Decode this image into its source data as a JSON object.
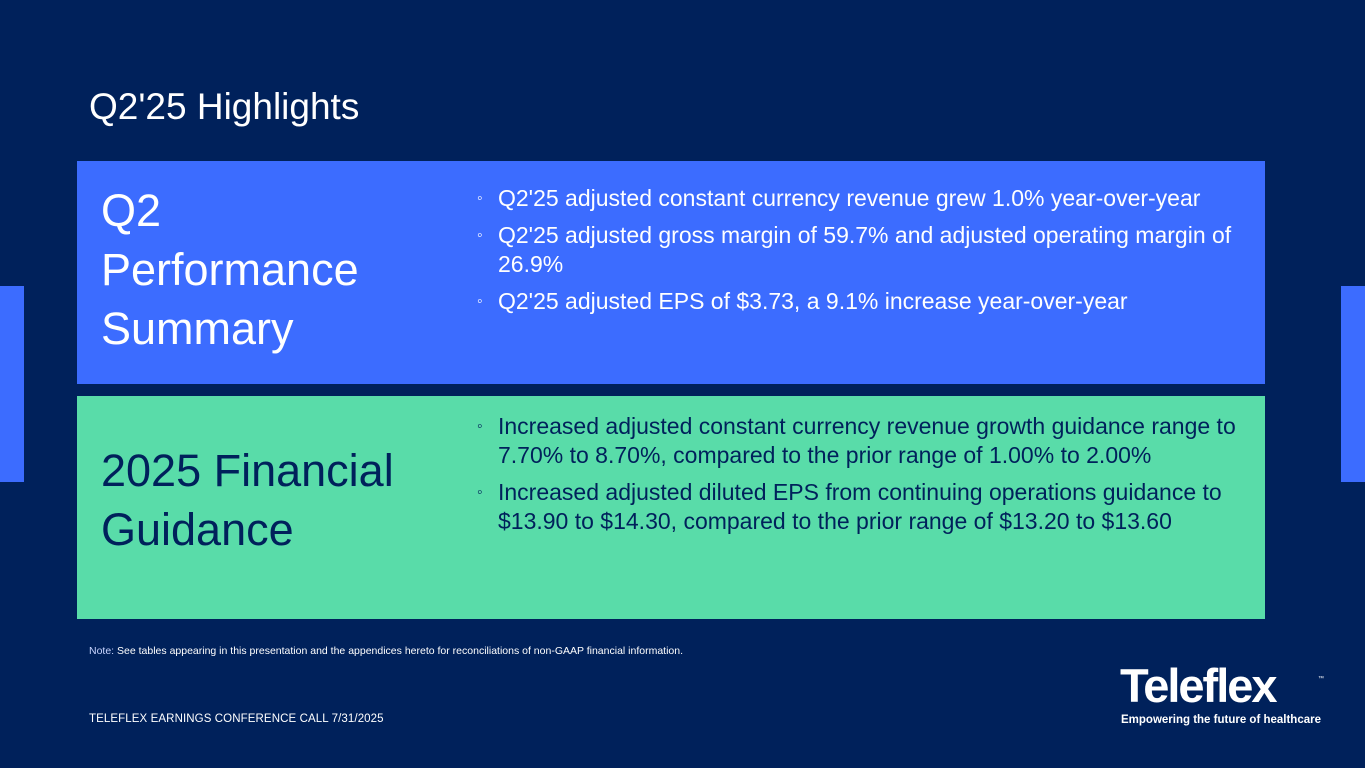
{
  "slide": {
    "title": "Q2'25 Highlights",
    "performance": {
      "heading": "Q2 Performance Summary",
      "bullets": [
        "Q2'25 adjusted constant currency revenue grew 1.0%  year-over-year",
        "Q2'25 adjusted gross margin of 59.7%  and adjusted operating margin of 26.9%",
        "Q2'25 adjusted EPS of $3.73, a 9.1%  increase year-over-year"
      ]
    },
    "guidance": {
      "heading": "2025 Financial Guidance",
      "bullets": [
        "Increased adjusted constant currency revenue growth guidance range to 7.70%  to 8.70%, compared to the prior range of 1.00% to 2.00%",
        "Increased adjusted diluted EPS from continuing operations guidance to $13.90 to $14.30, compared to the prior range of $13.20 to $13.60"
      ]
    },
    "note_label": "Note:",
    "note_text": " See tables appearing in this presentation and the appendices hereto for reconciliations of non-GAAP financial information.",
    "footer": "TELEFLEX EARNINGS CONFERENCE CALL 7/31/2025",
    "logo": {
      "name": "Teleflex",
      "trademark": "™",
      "tagline": "Empowering the future of healthcare"
    },
    "bullet_symbol": "◦"
  },
  "colors": {
    "background": "#00215b",
    "blue_panel": "#3c6cff",
    "green_panel": "#59dca9"
  }
}
